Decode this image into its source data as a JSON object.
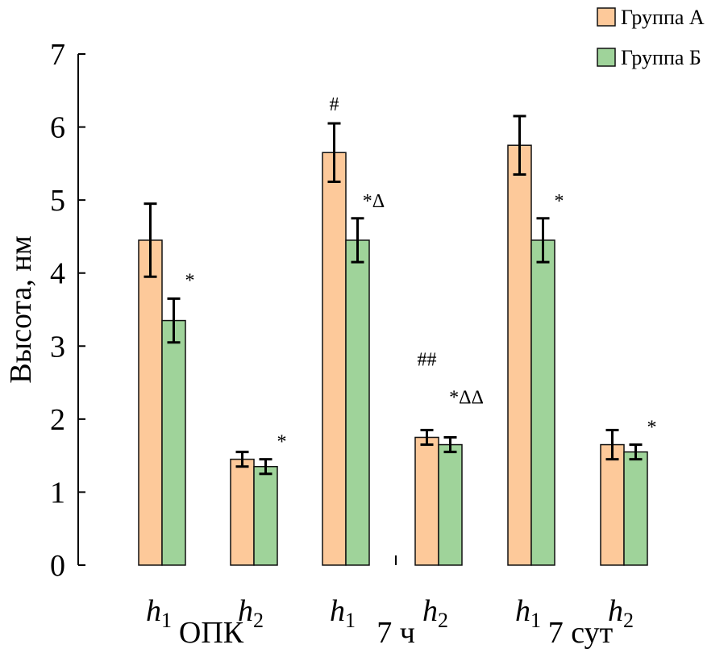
{
  "chart_data": {
    "type": "bar",
    "title": "",
    "ylabel": "Высота, нм",
    "xlabel": "",
    "ylim": [
      0,
      7
    ],
    "yticks": [
      "0",
      "1",
      "2",
      "3",
      "4",
      "5",
      "6",
      "7"
    ],
    "groups": [
      "ОПК",
      "7 ч",
      "7 сут"
    ],
    "subcategories": [
      "h",
      "h",
      "h",
      "h",
      "h",
      "h"
    ],
    "subscripts": [
      "1",
      "2",
      "1",
      "2",
      "1",
      "2"
    ],
    "series": [
      {
        "name": "Группа А",
        "color": "#FDC99A",
        "values": [
          4.45,
          1.45,
          5.65,
          1.75,
          5.75,
          1.65
        ],
        "errors": [
          0.5,
          0.1,
          0.4,
          0.1,
          0.4,
          0.2
        ]
      },
      {
        "name": "Группа Б",
        "color": "#9FD39A",
        "values": [
          3.35,
          1.35,
          4.45,
          1.65,
          4.45,
          1.55
        ],
        "errors": [
          0.3,
          0.1,
          0.3,
          0.1,
          0.3,
          0.1
        ]
      }
    ],
    "annotations": [
      {
        "category": 0,
        "series": 1,
        "text": "*"
      },
      {
        "category": 1,
        "series": 1,
        "text": "*"
      },
      {
        "category": 2,
        "series": 0,
        "text": "#"
      },
      {
        "category": 2,
        "series": 1,
        "text": "*Δ"
      },
      {
        "category": 3,
        "series": 0,
        "text": "##"
      },
      {
        "category": 3,
        "series": 1,
        "text": "*ΔΔ"
      },
      {
        "category": 4,
        "series": 1,
        "text": "*"
      },
      {
        "category": 5,
        "series": 1,
        "text": "*"
      }
    ],
    "legend_position": "top-right"
  }
}
